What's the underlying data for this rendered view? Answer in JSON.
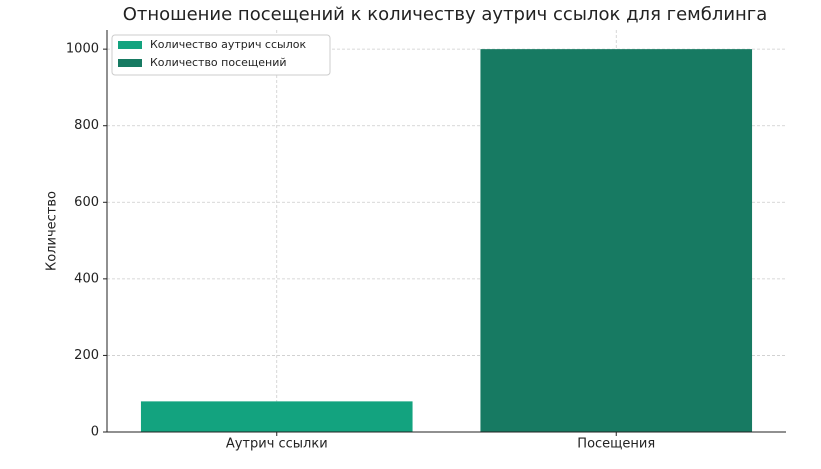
{
  "chart_data": {
    "type": "bar",
    "title": "Отношение посещений к количеству аутрич ссылок для гемблинга",
    "ylabel": "Количество",
    "categories": [
      "Аутрич ссылки",
      "Посещения"
    ],
    "series": [
      {
        "name": "Количество аутрич ссылок",
        "color": "#13a37f",
        "values": [
          80,
          null
        ]
      },
      {
        "name": "Количество посещений",
        "color": "#177a62",
        "values": [
          null,
          1000
        ]
      }
    ],
    "ylim": [
      0,
      1050
    ],
    "yticks": [
      0,
      200,
      400,
      600,
      800,
      1000
    ],
    "grid": true,
    "legend": "upper left"
  }
}
